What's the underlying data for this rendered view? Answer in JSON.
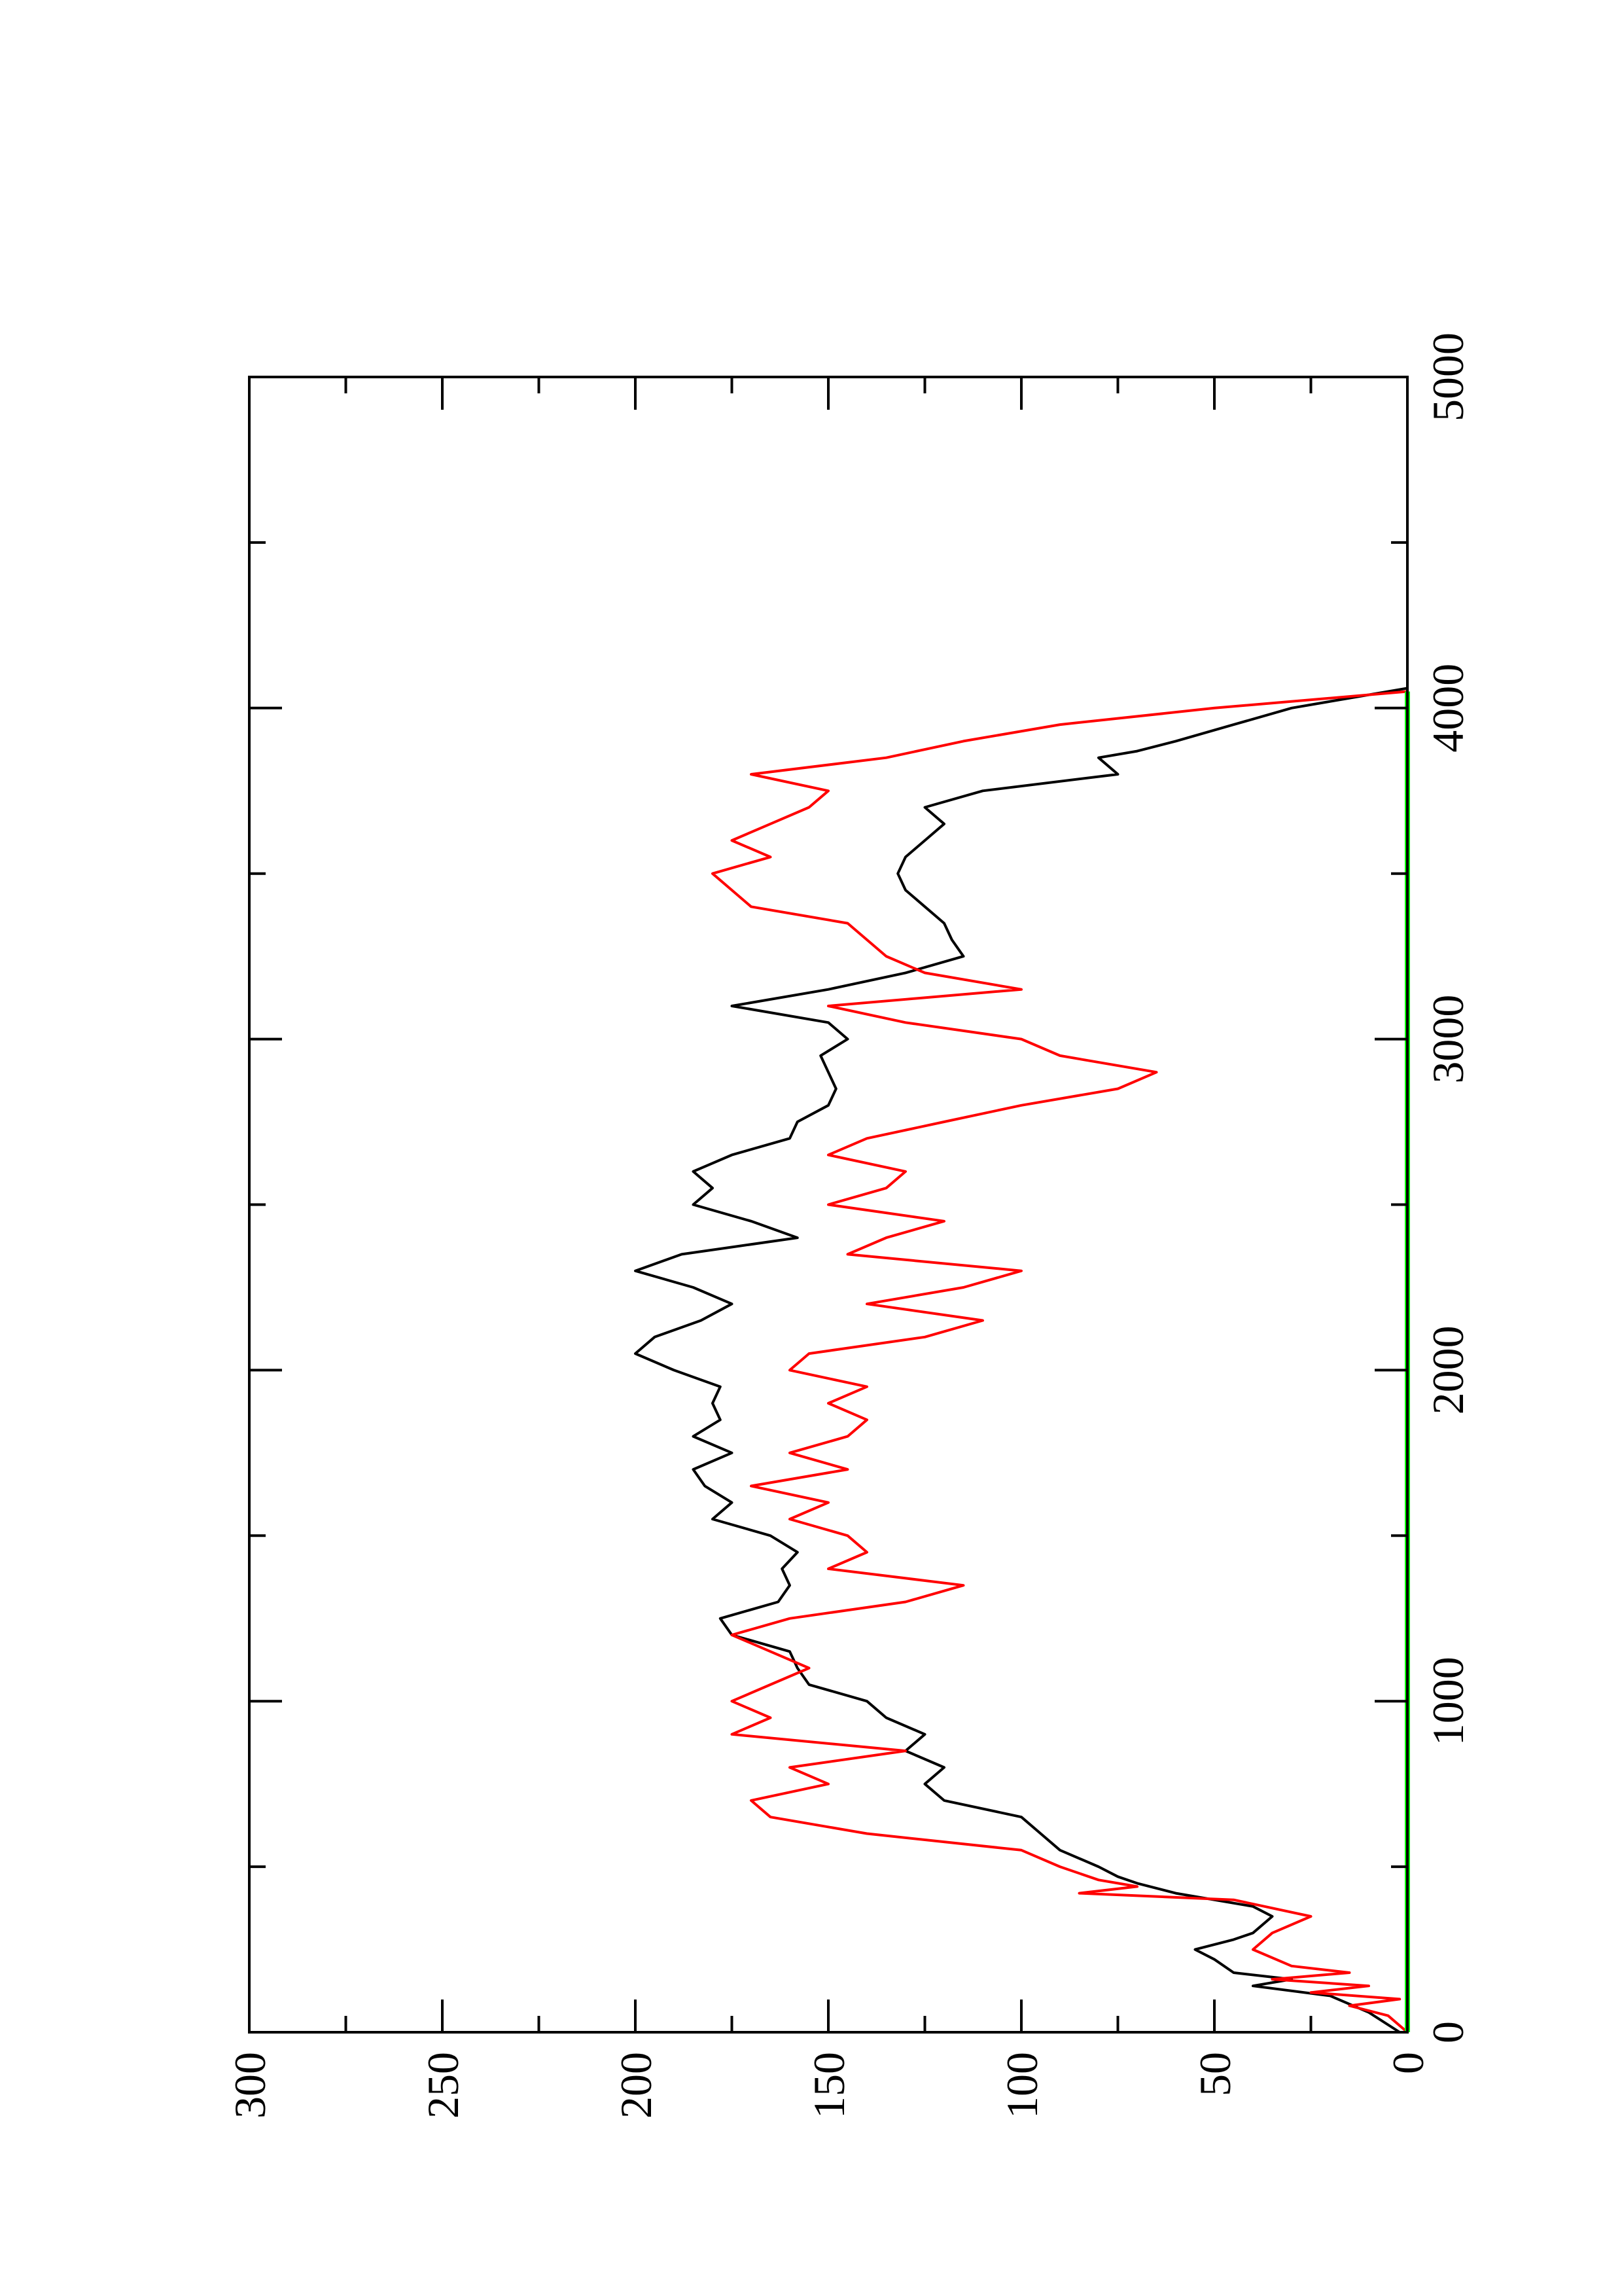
{
  "chart_data": {
    "type": "line",
    "orientation": "rotated-90-ccw",
    "title": "",
    "xlabel": "",
    "ylabel": "",
    "xlim": [
      0,
      5000
    ],
    "ylim": [
      0,
      300
    ],
    "x_ticks": [
      "0",
      "1000",
      "2000",
      "3000",
      "4000",
      "5000"
    ],
    "y_ticks": [
      "0",
      "50",
      "100",
      "150",
      "200",
      "250",
      "300"
    ],
    "grid": false,
    "legend": "none",
    "series": [
      {
        "color": "#000000",
        "x": [
          0,
          60,
          110,
          140,
          160,
          180,
          220,
          250,
          280,
          300,
          350,
          380,
          420,
          450,
          470,
          500,
          550,
          600,
          650,
          700,
          750,
          800,
          850,
          900,
          950,
          1000,
          1050,
          1100,
          1150,
          1200,
          1250,
          1300,
          1350,
          1400,
          1450,
          1500,
          1550,
          1600,
          1650,
          1700,
          1750,
          1800,
          1850,
          1900,
          1950,
          2000,
          2050,
          2100,
          2150,
          2200,
          2250,
          2300,
          2350,
          2400,
          2450,
          2500,
          2550,
          2600,
          2650,
          2700,
          2750,
          2800,
          2850,
          2900,
          2950,
          3000,
          3050,
          3100,
          3150,
          3200,
          3250,
          3300,
          3350,
          3400,
          3450,
          3500,
          3550,
          3600,
          3650,
          3700,
          3750,
          3800,
          3850,
          3870,
          3900,
          3950,
          4000,
          4030,
          4060
        ],
        "y": [
          2,
          10,
          20,
          40,
          30,
          45,
          50,
          55,
          45,
          40,
          35,
          40,
          60,
          70,
          75,
          80,
          90,
          95,
          100,
          120,
          125,
          120,
          130,
          125,
          135,
          140,
          155,
          158,
          160,
          175,
          178,
          163,
          160,
          162,
          158,
          165,
          180,
          175,
          182,
          185,
          175,
          185,
          178,
          180,
          178,
          190,
          200,
          195,
          183,
          175,
          185,
          200,
          188,
          158,
          170,
          185,
          180,
          185,
          175,
          160,
          158,
          150,
          148,
          150,
          152,
          145,
          150,
          175,
          150,
          130,
          115,
          118,
          120,
          125,
          130,
          132,
          130,
          125,
          120,
          125,
          110,
          75,
          80,
          70,
          60,
          45,
          30,
          15,
          0
        ]
      },
      {
        "color": "#ff0000",
        "x": [
          0,
          50,
          80,
          100,
          120,
          140,
          160,
          180,
          200,
          250,
          300,
          350,
          400,
          420,
          440,
          460,
          500,
          550,
          600,
          650,
          700,
          750,
          800,
          850,
          900,
          950,
          1000,
          1050,
          1100,
          1150,
          1200,
          1250,
          1300,
          1350,
          1400,
          1450,
          1500,
          1550,
          1600,
          1650,
          1700,
          1750,
          1800,
          1850,
          1900,
          1950,
          2000,
          2050,
          2100,
          2150,
          2200,
          2250,
          2300,
          2350,
          2400,
          2450,
          2500,
          2550,
          2600,
          2650,
          2700,
          2750,
          2800,
          2850,
          2900,
          2950,
          3000,
          3050,
          3100,
          3150,
          3200,
          3250,
          3300,
          3350,
          3400,
          3450,
          3500,
          3550,
          3600,
          3650,
          3700,
          3750,
          3800,
          3850,
          3900,
          3950,
          4000,
          4050
        ],
        "y": [
          0,
          5,
          15,
          2,
          25,
          10,
          35,
          15,
          30,
          40,
          35,
          25,
          45,
          85,
          70,
          80,
          90,
          100,
          140,
          165,
          170,
          150,
          160,
          130,
          175,
          165,
          175,
          165,
          155,
          165,
          175,
          160,
          130,
          115,
          150,
          140,
          145,
          160,
          150,
          170,
          145,
          160,
          145,
          140,
          150,
          140,
          160,
          155,
          125,
          110,
          140,
          115,
          100,
          145,
          135,
          120,
          150,
          135,
          130,
          150,
          140,
          120,
          100,
          75,
          65,
          90,
          100,
          130,
          150,
          100,
          125,
          135,
          140,
          145,
          170,
          175,
          180,
          165,
          175,
          165,
          155,
          150,
          170,
          135,
          115,
          90,
          50,
          0
        ]
      },
      {
        "color": "#00ff00",
        "x": [
          0,
          4050
        ],
        "y": [
          0,
          0
        ]
      }
    ]
  }
}
